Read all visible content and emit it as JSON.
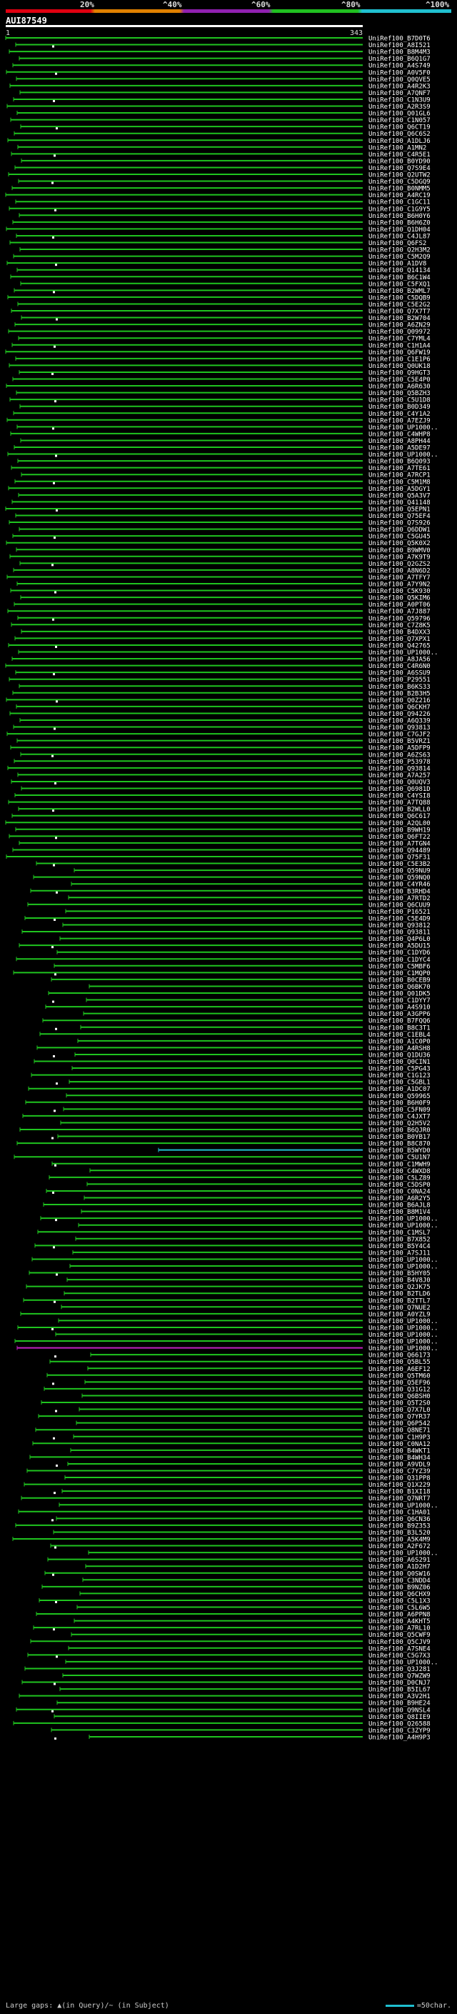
{
  "legend": {
    "ticks": [
      "20%",
      "^40%",
      "^60%",
      "^80%",
      "^100%"
    ]
  },
  "query": {
    "name": "AUI87549",
    "start": "1",
    "end": "343"
  },
  "footer": {
    "gaps_label": "Large gaps: ▲(in Query)/~ (in Subject)",
    "scale_label": "=50char."
  },
  "colors": {
    "green": "#1fc41f",
    "cyan": "#20c0d0",
    "magenta": "#c020c0",
    "white": "#ffffff"
  },
  "hits": [
    "UniRef100_B7D0T6",
    "UniRef100_A8I521",
    "UniRef100_B8M4M3",
    "UniRef100_B6Q1G7",
    "UniRef100_A4S749",
    "UniRef100_A0V5F0",
    "UniRef100_Q0QVE5",
    "UniRef100_A4R2K3",
    "UniRef100_A7QNF7",
    "UniRef100_C1N3U9",
    "UniRef100_A2R3S9",
    "UniRef100_Q01GL6",
    "UniRef100_C1N057",
    "UniRef100_Q6CT19",
    "UniRef100_Q6C6S2",
    "UniRef100_A1DLJ6",
    "UniRef100_A1MN2",
    "UniRef100_C4R5E1",
    "UniRef100_B0YD90",
    "UniRef100_Q7S9E4",
    "UniRef100_Q2UTW2",
    "UniRef100_C5DGQ9",
    "UniRef100_B0NMM5",
    "UniRef100_A4RC19",
    "UniRef100_C1GC11",
    "UniRef100_C1G9Y5",
    "UniRef100_B6H0Y6",
    "UniRef100_B6H6Z0",
    "UniRef100_Q1DH04",
    "UniRef100_C4JL87",
    "UniRef100_Q6FS2",
    "UniRef100_Q2H3M2",
    "UniRef100_C5M2Q9",
    "UniRef100_A1DV8",
    "UniRef100_Q14134",
    "UniRef100_B6C1W4",
    "UniRef100_C5FXQ1",
    "UniRef100_B2WML7",
    "UniRef100_C5DQB9",
    "UniRef100_C5E2G2",
    "UniRef100_Q7X7T7",
    "UniRef100_B2W704",
    "UniRef100_A6ZN29",
    "UniRef100_Q09972",
    "UniRef100_C7YML4",
    "UniRef100_C1H1A4",
    "UniRef100_Q6FW19",
    "UniRef100_C1E1P6",
    "UniRef100_Q0UK18",
    "UniRef100_Q9HGT3",
    "UniRef100_C5E4P0",
    "UniRef100_A6R630",
    "UniRef100_Q5BZH3",
    "UniRef100_C5U1D8",
    "UniRef100_B0D349",
    "UniRef100_C4Y1A2",
    "UniRef100_A7EZJ9",
    "UniRef100_UP1000..",
    "UniRef100_C4WHP8",
    "UniRef100_A8PH44",
    "UniRef100_A5DE97",
    "UniRef100_UP1000..",
    "UniRef100_B6Q093",
    "UniRef100_A7TE61",
    "UniRef100_A7RCP1",
    "UniRef100_C5M1M8",
    "UniRef100_A5DGY1",
    "UniRef100_Q5A3V7",
    "UniRef100_Q41148",
    "UniRef100_Q5EPN1",
    "UniRef100_Q75EF4",
    "UniRef100_Q7S926",
    "UniRef100_Q6DDW1",
    "UniRef100_C5GU45",
    "UniRef100_Q5K0X2",
    "UniRef100_B9WMV0",
    "UniRef100_A7K9T9",
    "UniRef100_Q2GZS2",
    "UniRef100_A8N6D2",
    "UniRef100_A7TFY7",
    "UniRef100_A7Y9N2",
    "UniRef100_C5K930",
    "UniRef100_Q5KIM6",
    "UniRef100_A0PT06",
    "UniRef100_A7J887",
    "UniRef100_Q59796",
    "UniRef100_C7Z8K5",
    "UniRef100_B4DXX3",
    "UniRef100_Q7XPX1",
    "UniRef100_Q42765",
    "UniRef100_UP1000..",
    "UniRef100_A8JA56",
    "UniRef100_C4R6N0",
    "UniRef100_A6SSU9",
    "UniRef100_P29551",
    "UniRef100_B6KS33",
    "UniRef100_B2B3H5",
    "UniRef100_Q0Z216",
    "UniRef100_Q6CKH7",
    "UniRef100_Q94226",
    "UniRef100_A6Q339",
    "UniRef100_Q93813",
    "UniRef100_C7GJF2",
    "UniRef100_B5VRZ1",
    "UniRef100_A5DFP9",
    "UniRef100_A6ZS63",
    "UniRef100_P53978",
    "UniRef100_Q93814",
    "UniRef100_A7A257",
    "UniRef100_Q0UQV3",
    "UniRef100_Q6981D",
    "UniRef100_C4YSI8",
    "UniRef100_A7TQ88",
    "UniRef100_B2WLL0",
    "UniRef100_Q6C617",
    "UniRef100_A2QL00",
    "UniRef100_B9WH19",
    "UniRef100_Q6FT22",
    "UniRef100_A7TGN4",
    "UniRef100_Q94489",
    "UniRef100_Q75F31",
    "UniRef100_C5E3B2",
    "UniRef100_Q59NU9",
    "UniRef100_Q59NQ0",
    "UniRef100_C4YR46",
    "UniRef100_B3RHD4",
    "UniRef100_A7RTD2",
    "UniRef100_Q6CUU9",
    "UniRef100_P16521",
    "UniRef100_C5E4D9",
    "UniRef100_Q93812",
    "UniRef100_Q93811",
    "UniRef100_Q4P6L0",
    "UniRef100_A5DU15",
    "UniRef100_C1DYD6",
    "UniRef100_C1DYC4",
    "UniRef100_C5MBF6",
    "UniRef100_C1MQP0",
    "UniRef100_B0CEB9",
    "UniRef100_Q6BK70",
    "UniRef100_Q01DK5",
    "UniRef100_C1DYY7",
    "UniRef100_A4S910",
    "UniRef100_A3GPP6",
    "UniRef100_B7FQQ6",
    "UniRef100_B8C3T1",
    "UniRef100_C1EBL4",
    "UniRef100_A1C0P0",
    "UniRef100_A4RSH8",
    "UniRef100_Q1DU36",
    "UniRef100_Q0CIN1",
    "UniRef100_C5PG43",
    "UniRef100_C1G123",
    "UniRef100_C5GBL1",
    "UniRef100_A1DC07",
    "UniRef100_Q59965",
    "UniRef100_B6H0F9",
    "UniRef100_C5FN09",
    "UniRef100_C4JXT7",
    "UniRef100_Q2H5V2",
    "UniRef100_B6QJR0",
    "UniRef100_B0YB17",
    "UniRef100_B8C870",
    "UniRef100_B5WYD0",
    "UniRef100_C5U1N7",
    "UniRef100_C1MWH9",
    "UniRef100_C4WXD8",
    "UniRef100_C5LZ89",
    "UniRef100_C5DSP0",
    "UniRef100_C0NA24",
    "UniRef100_A6R2Y5",
    "UniRef100_B6AJL8",
    "UniRef100_B8M1V4",
    "UniRef100_UP1000..",
    "UniRef100_UP1000..",
    "UniRef100_C1MSL7",
    "UniRef100_B7X852",
    "UniRef100_B5Y4C4",
    "UniRef100_A7SJ11",
    "UniRef100_UP1000..",
    "UniRef100_UP1000..",
    "UniRef100_B5HY05",
    "UniRef100_B4V8J0",
    "UniRef100_Q2JK75",
    "UniRef100_B2TLD6",
    "UniRef100_B2TTL7",
    "UniRef100_Q7NUE2",
    "UniRef100_A0YZL9",
    "UniRef100_UP1000..",
    "UniRef100_UP1000..",
    "UniRef100_UP1000..",
    "UniRef100_UP1000..",
    "UniRef100_UP1000..",
    "UniRef100_Q66173",
    "UniRef100_Q5BL55",
    "UniRef100_A6EF12",
    "UniRef100_Q5TM60",
    "UniRef100_Q5EF96",
    "UniRef100_Q31G12",
    "UniRef100_Q6BSH0",
    "UniRef100_Q5T2S0",
    "UniRef100_Q7X7L0",
    "UniRef100_Q7YR37",
    "UniRef100_Q6P542",
    "UniRef100_Q8NE71",
    "UniRef100_C1H9P3",
    "UniRef100_C0NA12",
    "UniRef100_B4WKT1",
    "UniRef100_B4WH34",
    "UniRef100_A9VDL9",
    "UniRef100_C7YZ39",
    "UniRef100_Q31PP8",
    "UniRef100_Q1X229",
    "UniRef100_B1XI18",
    "UniRef100_Q7NRT7",
    "UniRef100_UP1000..",
    "UniRef100_C1HA01",
    "UniRef100_Q6CN36",
    "UniRef100_B9Z353",
    "UniRef100_B3L520",
    "UniRef100_A5K4M9",
    "UniRef100_A2F672",
    "UniRef100_UP1000..",
    "UniRef100_A6S291",
    "UniRef100_A1D2H7",
    "UniRef100_Q0SW16",
    "UniRef100_C3NDD4",
    "UniRef100_B9NZ06",
    "UniRef100_Q6CHX9",
    "UniRef100_C5L1X3",
    "UniRef100_C5L6W5",
    "UniRef100_A6PPN8",
    "UniRef100_A4KHT5",
    "UniRef100_A7RL10",
    "UniRef100_Q5CWF9",
    "UniRef100_Q5CJV9",
    "UniRef100_A7SNE4",
    "UniRef100_C5G7X3",
    "UniRef100_UP1000..",
    "UniRef100_Q3J281",
    "UniRef100_Q7WZW9",
    "UniRef100_D0CNJ7",
    "UniRef100_B5IL67",
    "UniRef100_A3V2H1",
    "UniRef100_B9HE24",
    "UniRef100_Q9NSL4",
    "UniRef100_Q8IIE9",
    "UniRef100_Q26588",
    "UniRef100_C3ZYP9",
    "UniRef100_A4H9P3"
  ]
}
